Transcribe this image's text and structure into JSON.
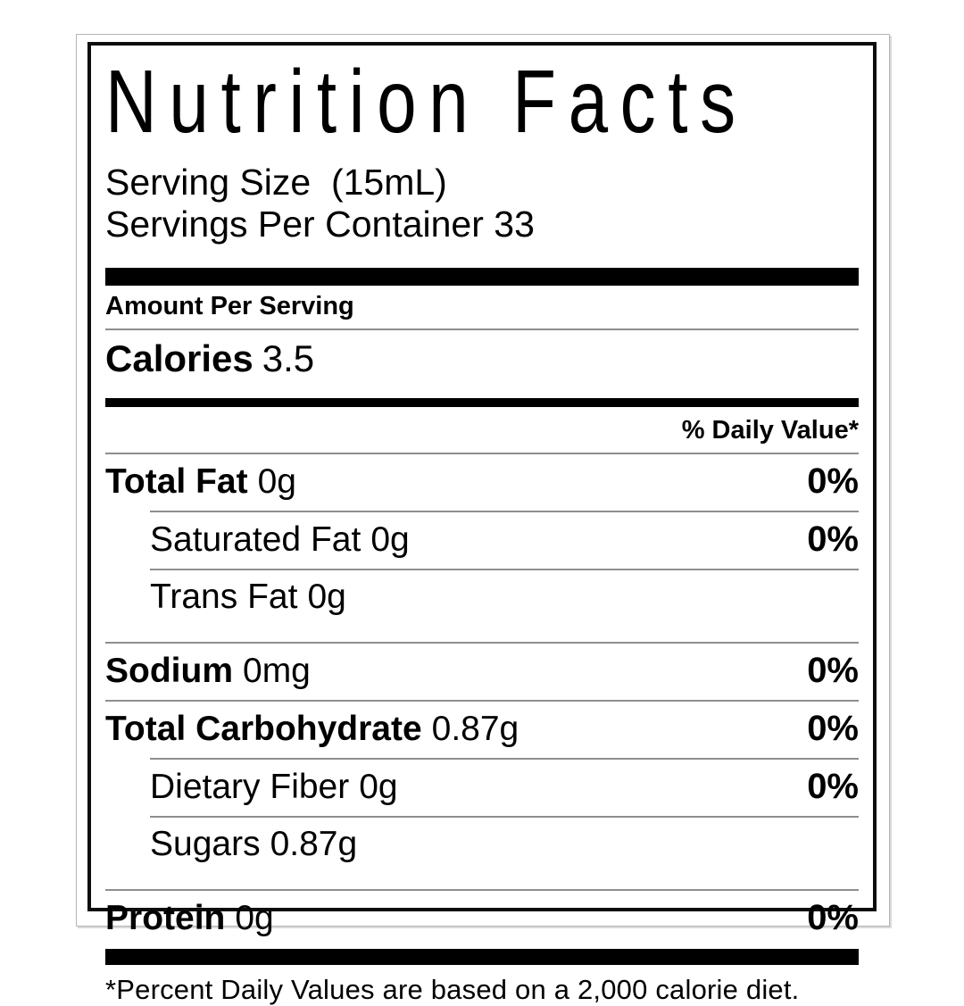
{
  "label": {
    "title": "Nutrition Facts",
    "serving_size": "Serving Size  (15mL)",
    "servings_per_container": "Servings Per Container 33",
    "amount_per_serving": "Amount Per Serving",
    "calories_label": "Calories",
    "calories_value": "3.5",
    "daily_value_header": "% Daily Value*",
    "rows": [
      {
        "name": "Total Fat",
        "amount": "0g",
        "dv": "0%"
      },
      {
        "name": "Saturated Fat",
        "amount": "0g",
        "dv": "0%"
      },
      {
        "name": "Trans Fat",
        "amount": "0g",
        "dv": ""
      },
      {
        "name": "Sodium",
        "amount": "0mg",
        "dv": "0%"
      },
      {
        "name": "Total Carbohydrate",
        "amount": "0.87g",
        "dv": "0%"
      },
      {
        "name": "Dietary Fiber",
        "amount": "0g",
        "dv": "0%"
      },
      {
        "name": "Sugars",
        "amount": "0.87g",
        "dv": ""
      },
      {
        "name": "Protein",
        "amount": "0g",
        "dv": "0%"
      }
    ],
    "footnote": "*Percent Daily Values are based on a 2,000 calorie diet."
  },
  "colors": {
    "text": "#000000",
    "bar": "#000000",
    "rule": "#8e8e8e",
    "frame_border": "#b5b5b5",
    "background": "#ffffff"
  }
}
